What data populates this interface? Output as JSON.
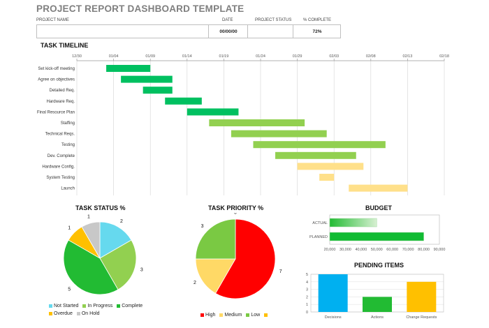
{
  "header": {
    "title": "PROJECT REPORT DASHBOARD TEMPLATE",
    "project_name_label": "PROJECT NAME",
    "date_label": "DATE",
    "status_label": "PROJECT STATUS",
    "complete_label": "% COMPLETE",
    "project_name_value": "",
    "date_value": "00/00/00",
    "status_value": "",
    "complete_value": "72%"
  },
  "colors": {
    "green_dark": "#00c060",
    "green_mid": "#92d050",
    "yellow": "#ffe08a",
    "grey_line": "#d9d9d9"
  },
  "chart_data": [
    {
      "type": "gantt",
      "title": "TASK TIMELINE",
      "axis_ticks": [
        "12/30",
        "01/04",
        "01/09",
        "01/14",
        "01/19",
        "01/24",
        "01/29",
        "02/03",
        "02/08",
        "02/13",
        "02/18"
      ],
      "tasks": [
        {
          "name": "Set kick-off meeting",
          "start": 4,
          "duration": 6,
          "color": "#00c060"
        },
        {
          "name": "Agree on objectives",
          "start": 6,
          "duration": 7,
          "color": "#00c060"
        },
        {
          "name": "Detailed Req.",
          "start": 9,
          "duration": 4,
          "color": "#00c060"
        },
        {
          "name": "Hardware Req.",
          "start": 12,
          "duration": 5,
          "color": "#00c060"
        },
        {
          "name": "Final Resource Plan",
          "start": 15,
          "duration": 7,
          "color": "#00c060"
        },
        {
          "name": "Staffing",
          "start": 18,
          "duration": 13,
          "color": "#92d050"
        },
        {
          "name": "Technical Reqs.",
          "start": 21,
          "duration": 13,
          "color": "#92d050"
        },
        {
          "name": "Testing",
          "start": 24,
          "duration": 18,
          "color": "#92d050"
        },
        {
          "name": "Dev. Complete",
          "start": 27,
          "duration": 11,
          "color": "#92d050"
        },
        {
          "name": "Hardware Config.",
          "start": 30,
          "duration": 9,
          "color": "#ffe08a"
        },
        {
          "name": "System Testing",
          "start": 33,
          "duration": 2,
          "color": "#ffe08a"
        },
        {
          "name": "Launch",
          "start": 37,
          "duration": 8,
          "color": "#ffe08a"
        }
      ]
    },
    {
      "type": "pie",
      "title": "TASK STATUS %",
      "slices": [
        {
          "name": "Not Started",
          "value": 2,
          "color": "#66d9ee"
        },
        {
          "name": "In Progress",
          "value": 3,
          "color": "#92d050"
        },
        {
          "name": "Complete",
          "value": 5,
          "color": "#22bb33"
        },
        {
          "name": "Overdue",
          "value": 1,
          "color": "#ffc000"
        },
        {
          "name": "On Hold",
          "value": 1,
          "color": "#c8c8c8"
        }
      ]
    },
    {
      "type": "pie",
      "title": "TASK PRIORITY %",
      "slices": [
        {
          "name": "High",
          "value": 7,
          "color": "#ff0000"
        },
        {
          "name": "Medium",
          "value": 2,
          "color": "#ffd966"
        },
        {
          "name": "Low",
          "value": 3,
          "color": "#7ac943"
        },
        {
          "name": "",
          "value": 0,
          "color": "#ffc000"
        }
      ]
    },
    {
      "type": "bar",
      "orientation": "horizontal",
      "title": "BUDGET",
      "categories": [
        "ACTUAL",
        "PLANNED"
      ],
      "values": [
        50000,
        80000
      ],
      "xlim": [
        20000,
        90000
      ],
      "ticks": [
        "20,000",
        "30,000",
        "40,000",
        "50,000",
        "60,000",
        "70,000",
        "80,000",
        "90,000"
      ]
    },
    {
      "type": "bar",
      "title": "PENDING ITEMS",
      "categories": [
        "Decisions",
        "Actions",
        "Change Requests"
      ],
      "values": [
        5,
        2,
        4
      ],
      "colors": [
        "#00b0f0",
        "#22bb33",
        "#ffc000"
      ],
      "ylim": [
        0,
        5
      ],
      "ticks": [
        "0",
        "1",
        "2",
        "3",
        "4",
        "5"
      ]
    }
  ]
}
